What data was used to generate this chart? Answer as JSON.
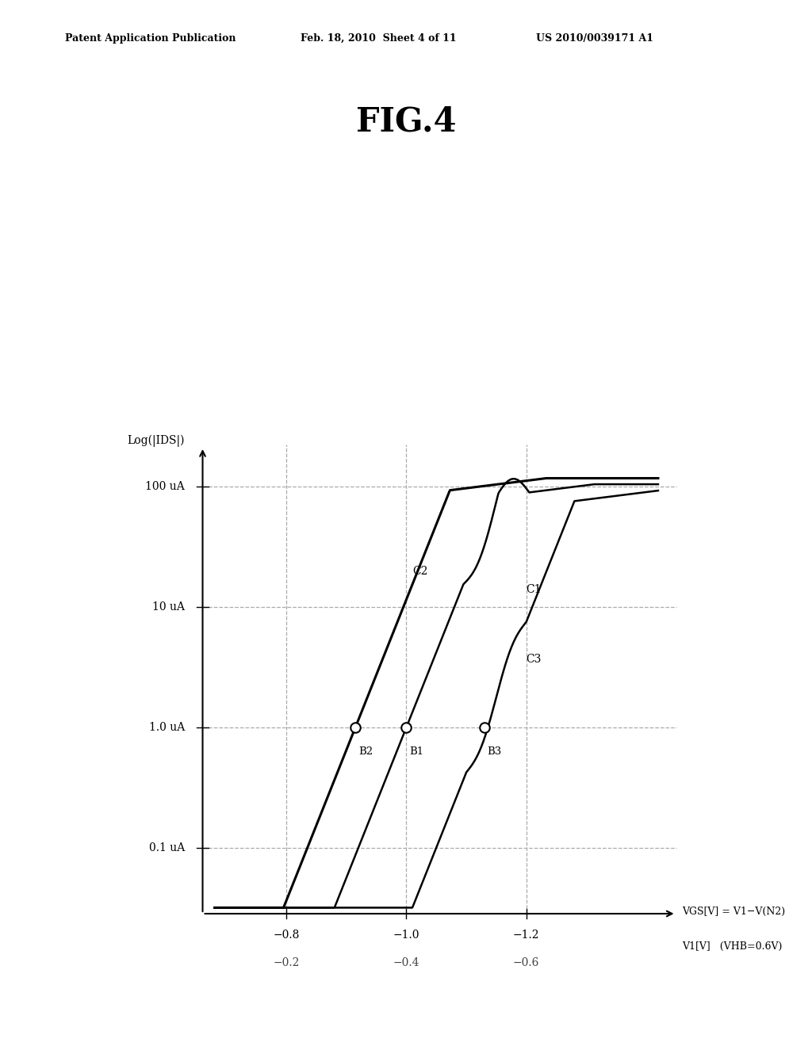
{
  "title": "FIG.4",
  "patent_header_left": "Patent Application Publication",
  "patent_header_mid": "Feb. 18, 2010  Sheet 4 of 11",
  "patent_header_right": "US 2010/0039171 A1",
  "ylabel": "Log(|IDS|)",
  "xlabel_top": "VGS[V] = V1−V(N2)",
  "xlabel_bot": "V1[V]   (VHB=0.6V)",
  "ytick_labels": [
    "0.1 uA",
    "1.0 uA",
    "10 uA",
    "100 uA"
  ],
  "ytick_vals": [
    -1,
    0,
    1,
    2
  ],
  "xtick_top": [
    -0.8,
    -1.0,
    -1.2
  ],
  "xtick_top_labels": [
    "−0.8",
    "−1.0",
    "−1.2"
  ],
  "xtick_bot_labels": [
    "−0.2",
    "−0.4",
    "−0.6"
  ],
  "background_color": "#ffffff",
  "curve_color": "#000000",
  "grid_color": "#aaaaaa"
}
